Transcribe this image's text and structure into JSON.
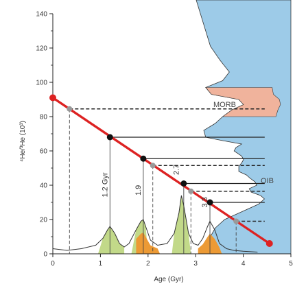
{
  "chart_data": {
    "type": "line",
    "xlabel": "Age (Gyr)",
    "ylabel": "⁴He/³He (10³)",
    "xlim": [
      0,
      5
    ],
    "ylim": [
      0,
      140
    ],
    "xticks": [
      0,
      1,
      2,
      3,
      4,
      5
    ],
    "yticks": [
      0,
      20,
      40,
      60,
      80,
      100,
      120,
      140
    ],
    "grid": false,
    "regression_line": {
      "x": [
        0,
        4.55
      ],
      "y": [
        91,
        6
      ],
      "color": "#dd2222"
    },
    "points": [
      {
        "x": 0.35,
        "y": 84.5,
        "style": "grey"
      },
      {
        "x": 1.2,
        "y": 68,
        "style": "black"
      },
      {
        "x": 1.9,
        "y": 55.5,
        "style": "black"
      },
      {
        "x": 2.1,
        "y": 51.5,
        "style": "grey"
      },
      {
        "x": 2.75,
        "y": 41,
        "style": "black"
      },
      {
        "x": 2.9,
        "y": 36.5,
        "style": "grey"
      },
      {
        "x": 3.3,
        "y": 30,
        "style": "black"
      },
      {
        "x": 3.85,
        "y": 19,
        "style": "grey"
      }
    ],
    "age_peaks": [
      {
        "label": "1.2 Gyr",
        "x": 1.2
      },
      {
        "label": "1.9",
        "x": 1.9
      },
      {
        "label": "2.7",
        "x": 2.7
      },
      {
        "label": "3.3",
        "x": 3.3
      }
    ],
    "age_distribution": {
      "x": [
        0,
        0.3,
        0.6,
        0.9,
        1.05,
        1.15,
        1.2,
        1.3,
        1.4,
        1.5,
        1.6,
        1.75,
        1.85,
        1.9,
        1.95,
        2.05,
        2.2,
        2.4,
        2.55,
        2.65,
        2.7,
        2.75,
        2.85,
        2.95,
        3.05,
        3.15,
        3.25,
        3.3,
        3.4,
        3.5,
        3.65,
        3.8,
        4.0,
        4.3
      ],
      "y": [
        3,
        2,
        3,
        5,
        9,
        14,
        16,
        12,
        6,
        4,
        6,
        14,
        19,
        20,
        16,
        8,
        5,
        6,
        12,
        24,
        34,
        28,
        12,
        6,
        5,
        9,
        16,
        19,
        14,
        6,
        3,
        2,
        1.5,
        1
      ]
    },
    "distribution_colors": {
      "green": "#c2d989",
      "orange": "#ec9a35"
    },
    "mantle_profile": {
      "ratio": [
        148,
        130,
        121,
        113,
        106,
        101,
        97,
        93,
        90,
        87,
        84,
        80,
        76,
        72,
        68,
        66,
        64,
        62,
        60,
        57,
        55,
        53,
        51,
        48,
        46,
        44,
        42,
        40,
        38,
        36,
        34,
        32,
        29,
        25,
        20,
        15,
        10,
        5,
        0
      ],
      "extent": [
        1.0,
        0.9,
        0.85,
        0.75,
        0.65,
        0.72,
        0.9,
        0.84,
        0.55,
        0.5,
        0.62,
        0.72,
        0.8,
        0.92,
        0.9,
        0.72,
        0.52,
        0.58,
        0.6,
        0.52,
        0.5,
        0.52,
        0.55,
        0.55,
        0.47,
        0.43,
        0.38,
        0.36,
        0.44,
        0.42,
        0.32,
        0.28,
        0.34,
        0.5,
        0.7,
        0.8,
        0.85,
        0.9,
        0.95
      ],
      "morb_floor": 80,
      "oib_color": "#9dcbe8",
      "morb_color": "#f0b39c"
    },
    "labels": {
      "morb": "MORB",
      "oib": "OIB"
    }
  }
}
